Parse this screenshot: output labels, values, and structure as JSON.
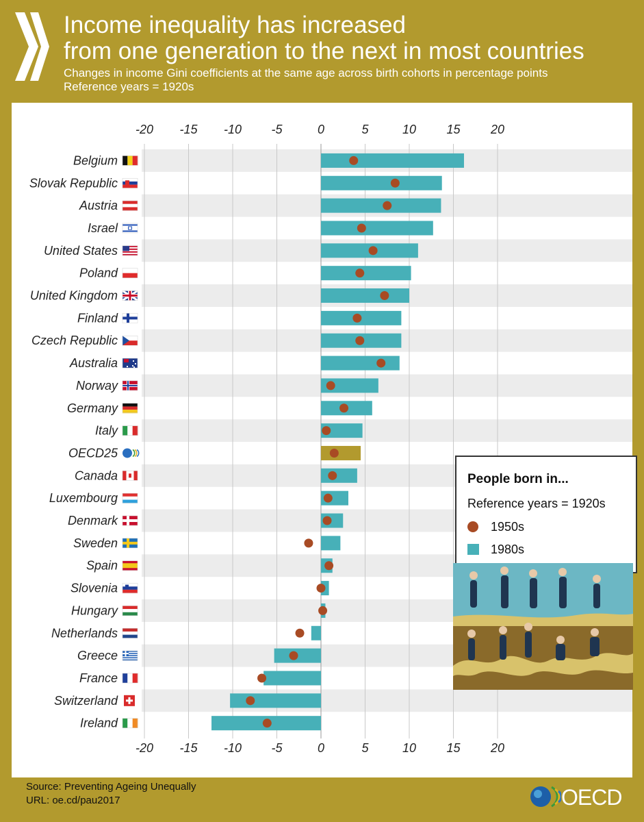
{
  "header": {
    "title_line1": "Income inequality has increased",
    "title_line2": "from one generation to the next in most countries",
    "subtitle_line1": "Changes in income Gini coefficients at the same age across birth cohorts in percentage points",
    "subtitle_line2": "Reference years = 1920s"
  },
  "legend": {
    "title": "People born in...",
    "subtitle": "Reference years = 1920s",
    "items": [
      "1950s",
      "1980s"
    ]
  },
  "footer": {
    "source": "Source: Preventing Ageing Unequally",
    "url": "URL: oe.cd/pau2017",
    "logo": "OECD"
  },
  "colors": {
    "bar": "#47b0b8",
    "bar_highlight": "#b29a2e",
    "dot": "#a84b24",
    "band": "#ececec",
    "frame": "#b29a2e"
  },
  "chart_data": {
    "type": "bar",
    "orientation": "horizontal",
    "title": "Income inequality has increased from one generation to the next in most countries",
    "xlim": [
      -20,
      20
    ],
    "ticks": [
      -20,
      -15,
      -10,
      -5,
      0,
      5,
      10,
      15,
      20
    ],
    "categories": [
      "Belgium",
      "Slovak Republic",
      "Austria",
      "Israel",
      "United States",
      "Poland",
      "United Kingdom",
      "Finland",
      "Czech Republic",
      "Australia",
      "Norway",
      "Germany",
      "Italy",
      "OECD25",
      "Canada",
      "Luxembourg",
      "Denmark",
      "Sweden",
      "Spain",
      "Slovenia",
      "Hungary",
      "Netherlands",
      "Greece",
      "France",
      "Switzerland",
      "Ireland"
    ],
    "series": [
      {
        "name": "1980s",
        "marker": "bar",
        "values": [
          16.2,
          13.7,
          13.6,
          12.7,
          11.0,
          10.2,
          10.0,
          9.1,
          9.1,
          8.9,
          6.5,
          5.8,
          4.7,
          4.5,
          4.1,
          3.1,
          2.5,
          2.2,
          1.3,
          0.9,
          0.5,
          -1.1,
          -5.3,
          -6.5,
          -10.3,
          -12.4
        ]
      },
      {
        "name": "1950s",
        "marker": "dot",
        "values": [
          3.7,
          8.4,
          7.5,
          4.6,
          5.9,
          4.4,
          7.2,
          4.1,
          4.4,
          6.8,
          1.1,
          2.6,
          0.6,
          1.5,
          1.3,
          0.8,
          0.7,
          -1.4,
          0.9,
          0.0,
          0.2,
          -2.4,
          -3.1,
          -6.7,
          -8.0,
          -6.1
        ]
      }
    ],
    "highlight": "OECD25",
    "flags": [
      "be",
      "sk",
      "at",
      "il",
      "us",
      "pl",
      "gb",
      "fi",
      "cz",
      "au",
      "no",
      "de",
      "it",
      "oecd",
      "ca",
      "lu",
      "dk",
      "se",
      "es",
      "si",
      "hu",
      "nl",
      "gr",
      "fr",
      "ch",
      "ie"
    ]
  }
}
